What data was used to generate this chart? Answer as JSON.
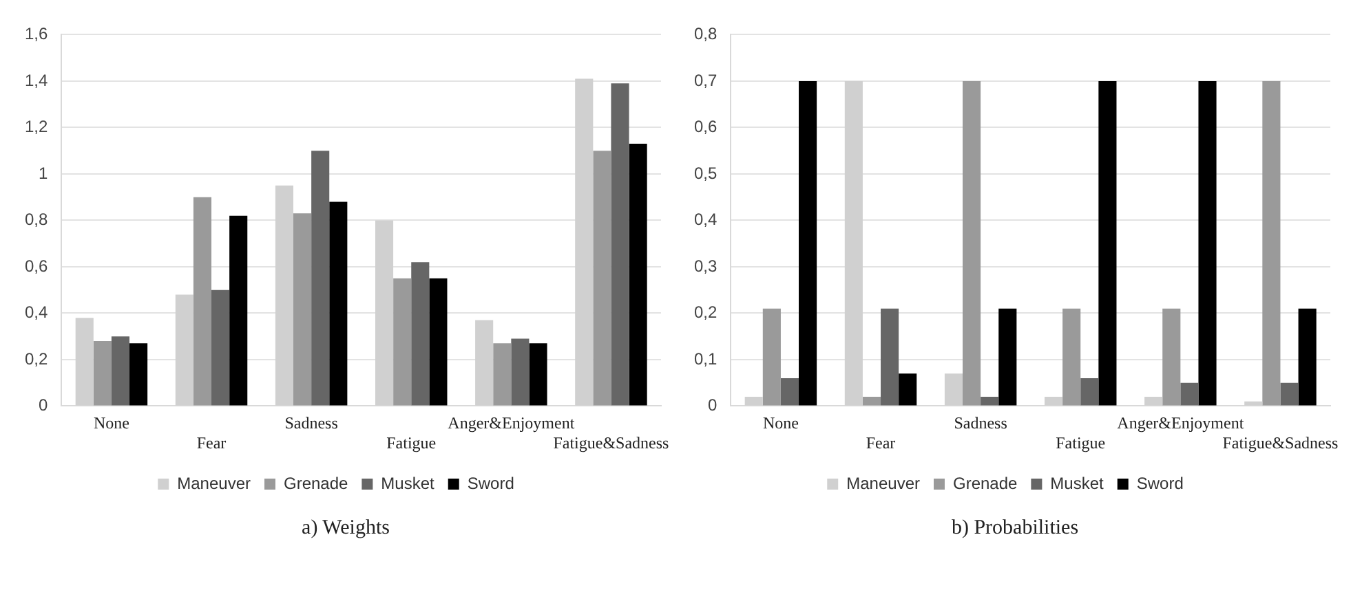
{
  "chart_data": [
    {
      "type": "bar",
      "title": "a) Weights",
      "categories": [
        "None",
        "Fear",
        "Sadness",
        "Fatigue",
        "Anger&Enjoyment",
        "Fatigue&Sadness"
      ],
      "series": [
        {
          "name": "Maneuver",
          "color": "#d0d0d0",
          "values": [
            0.38,
            0.48,
            0.95,
            0.8,
            0.37,
            1.41
          ]
        },
        {
          "name": "Grenade",
          "color": "#9a9a9a",
          "values": [
            0.28,
            0.9,
            0.83,
            0.55,
            0.27,
            1.1
          ]
        },
        {
          "name": "Musket",
          "color": "#666666",
          "values": [
            0.3,
            0.5,
            1.1,
            0.62,
            0.29,
            1.39
          ]
        },
        {
          "name": "Sword",
          "color": "#000000",
          "values": [
            0.27,
            0.82,
            0.88,
            0.55,
            0.27,
            1.13
          ]
        }
      ],
      "ylim": [
        0,
        1.6
      ],
      "yticks": [
        {
          "value": 0,
          "label": "0"
        },
        {
          "value": 0.2,
          "label": "0,2"
        },
        {
          "value": 0.4,
          "label": "0,4"
        },
        {
          "value": 0.6,
          "label": "0,6"
        },
        {
          "value": 0.8,
          "label": "0,8"
        },
        {
          "value": 1,
          "label": "1"
        },
        {
          "value": 1.2,
          "label": "1,2"
        },
        {
          "value": 1.4,
          "label": "1,4"
        },
        {
          "value": 1.6,
          "label": "1,6"
        }
      ],
      "grid": "y",
      "legend": "bottom"
    },
    {
      "type": "bar",
      "title": "b) Probabilities",
      "categories": [
        "None",
        "Fear",
        "Sadness",
        "Fatigue",
        "Anger&Enjoyment",
        "Fatigue&Sadness"
      ],
      "series": [
        {
          "name": "Maneuver",
          "color": "#d0d0d0",
          "values": [
            0.02,
            0.7,
            0.07,
            0.02,
            0.02,
            0.01
          ]
        },
        {
          "name": "Grenade",
          "color": "#9a9a9a",
          "values": [
            0.21,
            0.02,
            0.7,
            0.21,
            0.21,
            0.7
          ]
        },
        {
          "name": "Musket",
          "color": "#666666",
          "values": [
            0.06,
            0.21,
            0.02,
            0.06,
            0.05,
            0.05
          ]
        },
        {
          "name": "Sword",
          "color": "#000000",
          "values": [
            0.7,
            0.07,
            0.21,
            0.7,
            0.7,
            0.21
          ]
        }
      ],
      "ylim": [
        0,
        0.8
      ],
      "yticks": [
        {
          "value": 0,
          "label": "0"
        },
        {
          "value": 0.1,
          "label": "0,1"
        },
        {
          "value": 0.2,
          "label": "0,2"
        },
        {
          "value": 0.3,
          "label": "0,3"
        },
        {
          "value": 0.4,
          "label": "0,4"
        },
        {
          "value": 0.5,
          "label": "0,5"
        },
        {
          "value": 0.6,
          "label": "0,6"
        },
        {
          "value": 0.7,
          "label": "0,7"
        },
        {
          "value": 0.8,
          "label": "0,8"
        }
      ],
      "grid": "y",
      "legend": "bottom"
    }
  ]
}
